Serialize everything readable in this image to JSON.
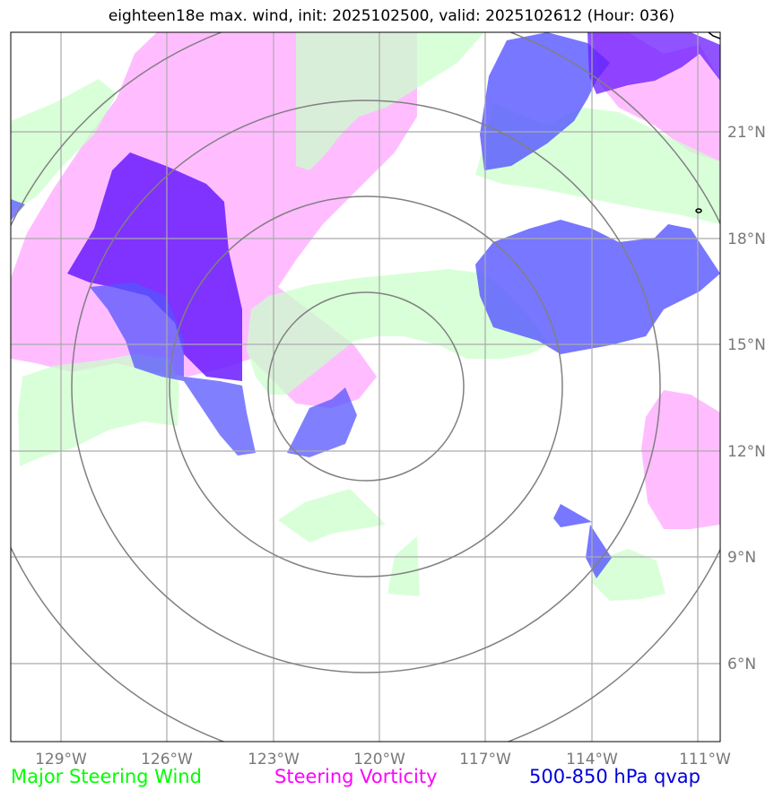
{
  "title": "eighteen18e max. wind, init: 2025102500, valid: 2025102612 (Hour: 036)",
  "axes": {
    "lon_labels": [
      "129°W",
      "126°W",
      "123°W",
      "120°W",
      "117°W",
      "114°W",
      "111°W"
    ],
    "lat_labels": [
      "21°N",
      "18°N",
      "15°N",
      "12°N",
      "9°N",
      "6°N"
    ]
  },
  "legend": {
    "steering_wind": {
      "label": "Major Steering Wind",
      "color": "#00ff00"
    },
    "steering_vorticity": {
      "label": "Steering Vorticity",
      "color": "#ff00ff"
    },
    "qvap": {
      "label": "500-850 hPa qvap",
      "color": "#0000dd"
    }
  },
  "colors": {
    "steering_wind_fill": "#ccffcc",
    "steering_vorticity_fill": "#ff99ff",
    "qvap_fill": "#5555ff",
    "qvap_strong_fill": "#6a1aff",
    "range_rings": "#808080",
    "gridlines": "#aaaaaa"
  }
}
